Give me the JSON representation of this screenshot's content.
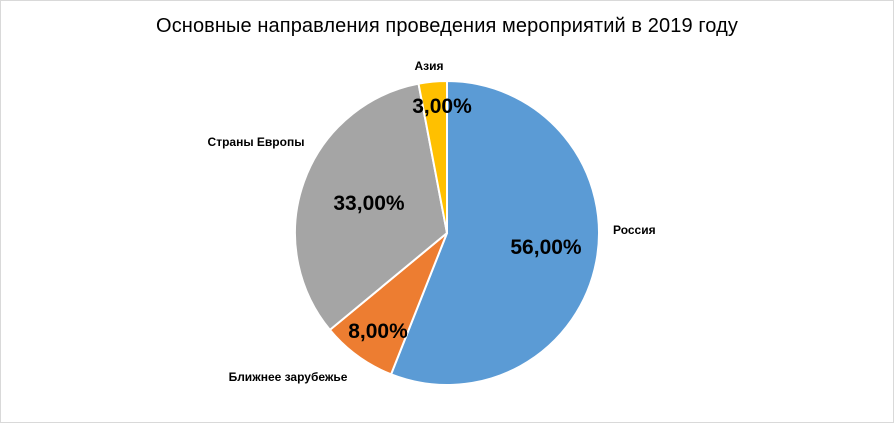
{
  "chart_data": {
    "type": "pie",
    "title": "Основные направления проведения мероприятий в 2019 году",
    "categories": [
      "Россия",
      "Ближнее зарубежье",
      "Страны Европы",
      "Азия"
    ],
    "values": [
      56,
      8,
      33,
      3
    ],
    "value_labels": [
      "56,00%",
      "8,00%",
      "33,00%",
      "3,00%"
    ],
    "colors": [
      "#5B9BD5",
      "#ED7D31",
      "#A5A5A5",
      "#FFC000"
    ],
    "start": "12 o'clock",
    "direction": "clockwise",
    "legend": "none"
  }
}
